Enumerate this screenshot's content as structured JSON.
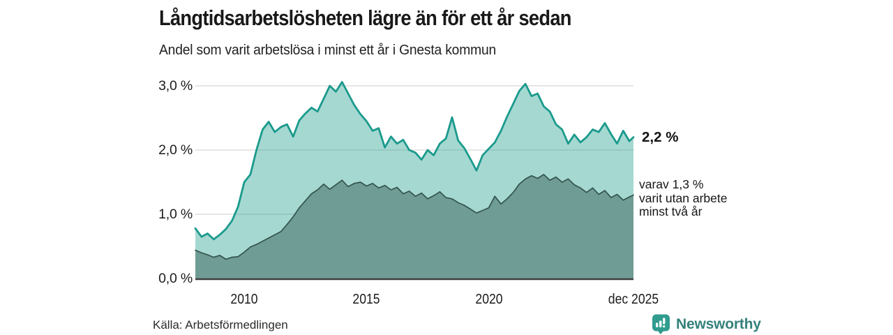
{
  "header": {
    "title": "Långtidsarbetslösheten lägre än för ett år sedan",
    "subtitle": "Andel som varit arbetslösa i minst ett år i Gnesta kommun"
  },
  "annotations": {
    "latest_total": "2,2 %",
    "two_year_line1": "varav 1,3 %",
    "two_year_line2": "varit utan arbete",
    "two_year_line3": "minst två år"
  },
  "footer": {
    "source": "Källa: Arbetsförmedlingen",
    "brand": "Newsworthy",
    "brand_icon": "newsworthy-bar-chart-badge-icon"
  },
  "colors": {
    "teal_line": "#1a9a8c",
    "light_area_composite": "#a6d7ce",
    "dark_area": "#6f9c94",
    "dark_area_line": "#33544d",
    "gridline": "#d8d8d8",
    "axis_line": "#3f3f3f",
    "brand_badge": "#2f9c8e",
    "brand_text": "#35827b",
    "text": "#1a1a1a"
  },
  "chart_data": {
    "type": "area",
    "title": "Långtidsarbetslösheten lägre än för ett år sedan",
    "subtitle": "Andel som varit arbetslösa i minst ett år i Gnesta kommun",
    "unit": "%",
    "grid": true,
    "legend_position": "none",
    "x_start": 2008.0,
    "x_step": 0.25,
    "x_end": 2025.92,
    "x_range": [
      2008.0,
      2025.92
    ],
    "y_range": [
      0,
      3.2
    ],
    "y_ticks": [
      {
        "v": 0,
        "label": "0,0 %"
      },
      {
        "v": 1,
        "label": "1,0 %"
      },
      {
        "v": 2,
        "label": "2,0 %"
      },
      {
        "v": 3,
        "label": "3,0 %"
      }
    ],
    "x_ticks": [
      {
        "x": 2010,
        "label": "2010"
      },
      {
        "x": 2015,
        "label": "2015"
      },
      {
        "x": 2020,
        "label": "2020"
      },
      {
        "x": 2025.92,
        "label": "dec 2025"
      }
    ],
    "series": [
      {
        "name": "Andel arbetslösa minst ett år",
        "latest_value": 2.2,
        "latest_label": "2,2 %",
        "line_color": "#1a9a8c",
        "line_width": 2.8,
        "fill_color": "#1a9a8c",
        "fill_opacity": 0.39,
        "values": [
          0.78,
          0.65,
          0.7,
          0.61,
          0.68,
          0.77,
          0.9,
          1.12,
          1.5,
          1.62,
          2.0,
          2.32,
          2.44,
          2.28,
          2.36,
          2.4,
          2.21,
          2.46,
          2.57,
          2.66,
          2.6,
          2.8,
          3.0,
          2.91,
          3.06,
          2.88,
          2.7,
          2.56,
          2.45,
          2.3,
          2.34,
          2.04,
          2.21,
          2.1,
          2.16,
          2.0,
          1.96,
          1.85,
          2.0,
          1.92,
          2.1,
          2.18,
          2.51,
          2.15,
          2.03,
          1.86,
          1.68,
          1.92,
          2.02,
          2.12,
          2.3,
          2.52,
          2.72,
          2.92,
          3.03,
          2.84,
          2.88,
          2.68,
          2.6,
          2.4,
          2.32,
          2.1,
          2.24,
          2.12,
          2.2,
          2.32,
          2.28,
          2.42,
          2.25,
          2.1,
          2.3,
          2.14,
          2.2
        ]
      },
      {
        "name": "Andel arbetslösa minst två år",
        "latest_value": 1.3,
        "latest_label": "varav 1,3 % varit utan arbete minst två år",
        "line_color": "#33544d",
        "line_width": 1.7,
        "fill_color": "#6f9c94",
        "fill_opacity": 1,
        "values": [
          0.44,
          0.4,
          0.37,
          0.33,
          0.36,
          0.3,
          0.33,
          0.34,
          0.41,
          0.49,
          0.53,
          0.58,
          0.63,
          0.68,
          0.73,
          0.84,
          0.96,
          1.1,
          1.21,
          1.32,
          1.38,
          1.47,
          1.39,
          1.46,
          1.53,
          1.43,
          1.48,
          1.5,
          1.44,
          1.48,
          1.41,
          1.45,
          1.38,
          1.42,
          1.32,
          1.36,
          1.28,
          1.33,
          1.24,
          1.29,
          1.35,
          1.26,
          1.24,
          1.18,
          1.14,
          1.08,
          1.02,
          1.06,
          1.1,
          1.28,
          1.16,
          1.24,
          1.34,
          1.47,
          1.55,
          1.6,
          1.56,
          1.62,
          1.53,
          1.58,
          1.5,
          1.55,
          1.46,
          1.41,
          1.34,
          1.41,
          1.31,
          1.37,
          1.26,
          1.31,
          1.22,
          1.27,
          1.3
        ]
      }
    ]
  }
}
